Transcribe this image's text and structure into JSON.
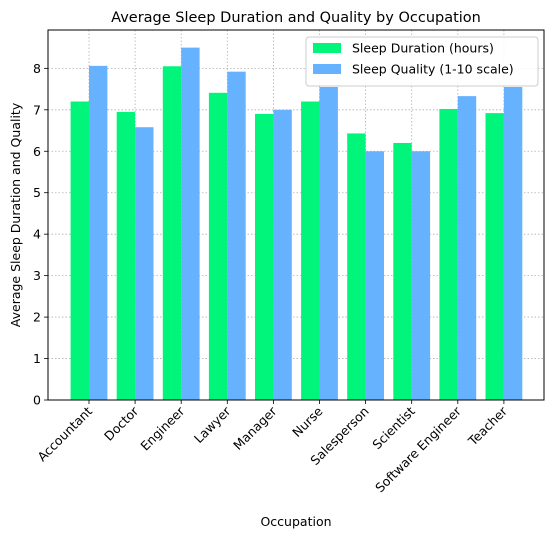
{
  "chart_data": {
    "type": "bar",
    "title": "Average Sleep Duration and Quality by Occupation",
    "xlabel": "Occupation",
    "ylabel": "Average Sleep Duration and Quality",
    "categories": [
      "Accountant",
      "Doctor",
      "Engineer",
      "Lawyer",
      "Manager",
      "Nurse",
      "Salesperson",
      "Scientist",
      "Software Engineer",
      "Teacher"
    ],
    "series": [
      {
        "name": "Sleep Duration (hours)",
        "color": "#00f57a",
        "values": [
          7.2,
          6.95,
          8.05,
          7.41,
          6.9,
          7.2,
          6.43,
          6.2,
          7.02,
          6.92
        ]
      },
      {
        "name": "Sleep Quality (1-10 scale)",
        "color": "#66b2ff",
        "values": [
          8.06,
          6.58,
          8.5,
          7.92,
          7.0,
          7.55,
          6.0,
          6.0,
          7.33,
          7.55
        ]
      }
    ],
    "ylim": [
      0,
      8.925
    ],
    "yticks": [
      0,
      1,
      2,
      3,
      4,
      5,
      6,
      7,
      8
    ],
    "grid": true,
    "legend_position": "top-right"
  }
}
